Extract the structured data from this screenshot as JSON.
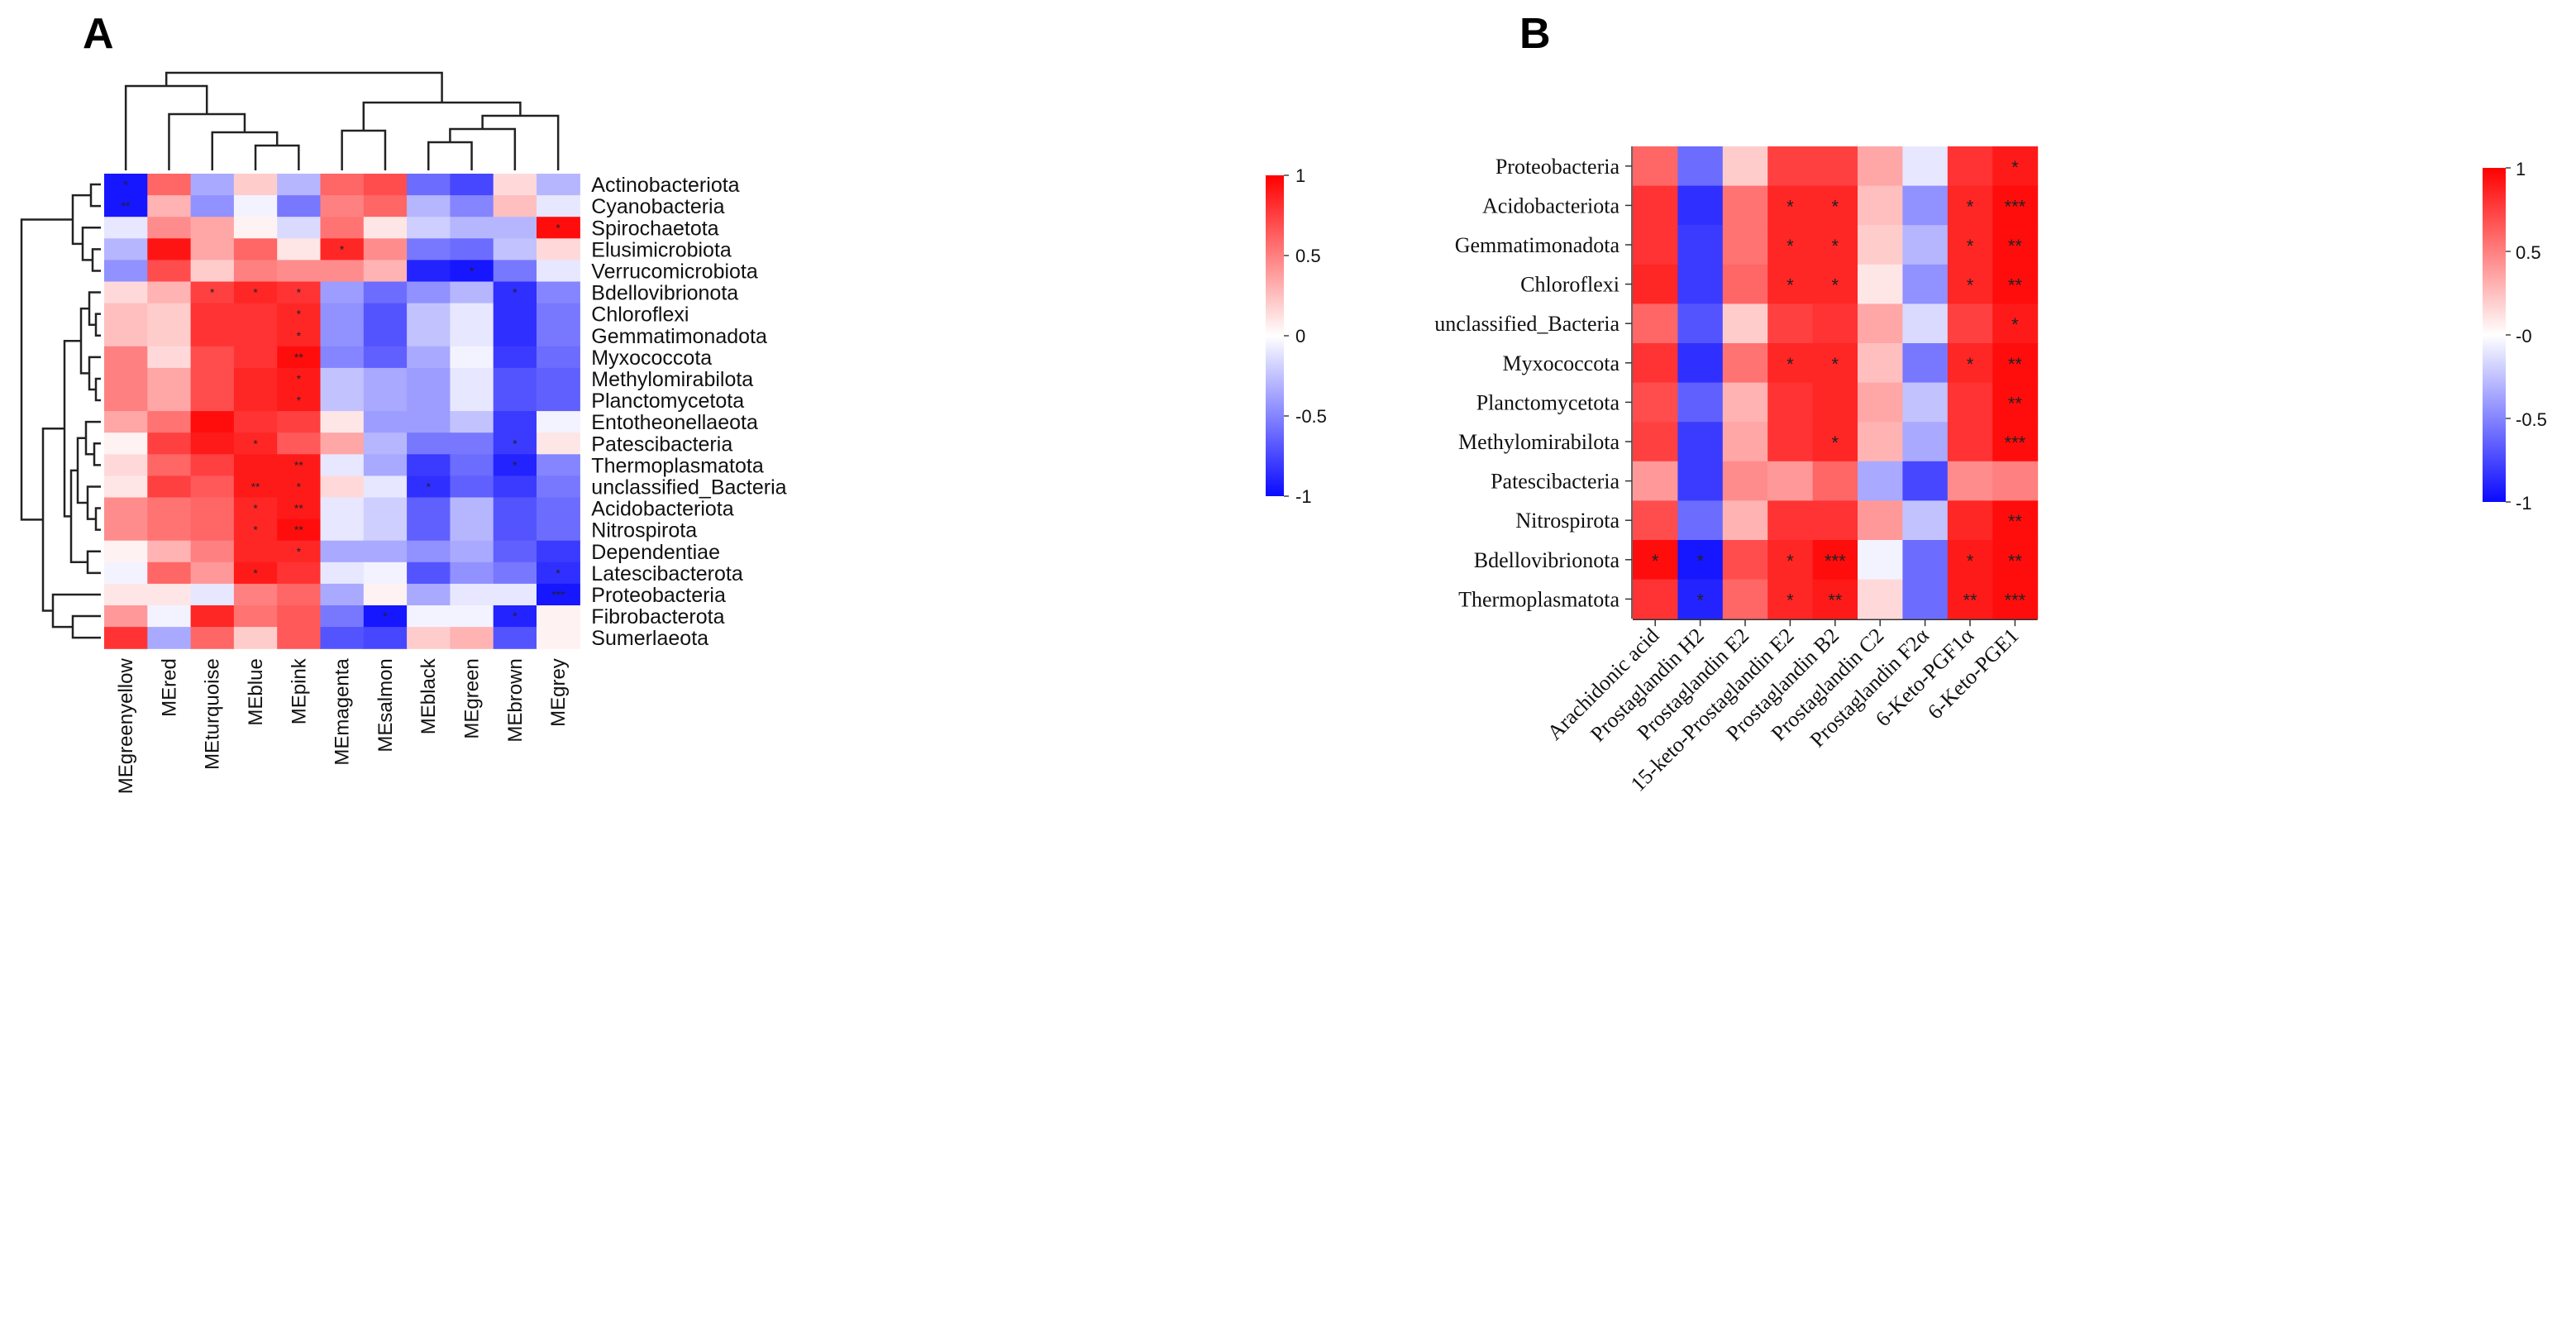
{
  "chart_data": [
    {
      "type": "heatmap",
      "panel_label": "A",
      "rows": [
        "Actinobacteriota",
        "Cyanobacteria",
        "Spirochaetota",
        "Elusimicrobiota",
        "Verrucomicrobiota",
        "Bdellovibrionota",
        "Chloroflexi",
        "Gemmatimonadota",
        "Myxococcota",
        "Methylomirabilota",
        "Planctomycetota",
        "Entotheonellaeota",
        "Patescibacteria",
        "Thermoplasmatota",
        "unclassified_Bacteria",
        "Acidobacteriota",
        "Nitrospirota",
        "Dependentiae",
        "Latescibacterota",
        "Proteobacteria",
        "Fibrobacterota",
        "Sumerlaeota"
      ],
      "columns": [
        "MEgreenyellow",
        "MEred",
        "MEturquoise",
        "MEblue",
        "MEpink",
        "MEmagenta",
        "MEsalmon",
        "MEblack",
        "MEgreen",
        "MEbrown",
        "MEgrey"
      ],
      "values": [
        [
          -0.95,
          0.6,
          -0.35,
          0.2,
          -0.3,
          0.6,
          0.7,
          -0.6,
          -0.75,
          0.15,
          -0.3
        ],
        [
          -0.95,
          0.3,
          -0.45,
          -0.05,
          -0.55,
          0.5,
          0.6,
          -0.3,
          -0.5,
          0.25,
          -0.1
        ],
        [
          -0.1,
          0.45,
          0.35,
          0.05,
          -0.15,
          0.55,
          0.1,
          -0.2,
          -0.3,
          -0.3,
          0.95
        ],
        [
          -0.3,
          0.92,
          0.35,
          0.6,
          0.1,
          0.85,
          0.45,
          -0.55,
          -0.6,
          -0.25,
          0.15
        ],
        [
          -0.45,
          0.7,
          0.2,
          0.5,
          0.45,
          0.45,
          0.3,
          -0.9,
          -0.95,
          -0.55,
          -0.1
        ],
        [
          0.15,
          0.3,
          0.75,
          0.85,
          0.8,
          -0.4,
          -0.6,
          -0.45,
          -0.3,
          -0.85,
          -0.5
        ],
        [
          0.25,
          0.2,
          0.8,
          0.8,
          0.85,
          -0.45,
          -0.7,
          -0.25,
          -0.1,
          -0.85,
          -0.55
        ],
        [
          0.25,
          0.2,
          0.8,
          0.8,
          0.85,
          -0.45,
          -0.7,
          -0.25,
          -0.1,
          -0.85,
          -0.55
        ],
        [
          0.5,
          0.15,
          0.7,
          0.8,
          0.95,
          -0.5,
          -0.65,
          -0.35,
          -0.05,
          -0.8,
          -0.6
        ],
        [
          0.5,
          0.35,
          0.7,
          0.85,
          0.9,
          -0.25,
          -0.35,
          -0.4,
          -0.1,
          -0.7,
          -0.65
        ],
        [
          0.5,
          0.35,
          0.7,
          0.85,
          0.9,
          -0.25,
          -0.35,
          -0.4,
          -0.1,
          -0.7,
          -0.65
        ],
        [
          0.35,
          0.55,
          0.95,
          0.8,
          0.75,
          0.1,
          -0.4,
          -0.4,
          -0.25,
          -0.8,
          -0.05
        ],
        [
          0.05,
          0.75,
          0.9,
          0.85,
          0.65,
          0.35,
          -0.3,
          -0.55,
          -0.55,
          -0.8,
          0.1
        ],
        [
          0.15,
          0.6,
          0.75,
          0.9,
          0.9,
          -0.1,
          -0.35,
          -0.8,
          -0.6,
          -0.9,
          -0.5
        ],
        [
          0.1,
          0.75,
          0.65,
          0.9,
          0.9,
          0.15,
          -0.1,
          -0.85,
          -0.65,
          -0.8,
          -0.55
        ],
        [
          0.45,
          0.55,
          0.6,
          0.85,
          0.9,
          -0.1,
          -0.2,
          -0.65,
          -0.3,
          -0.7,
          -0.6
        ],
        [
          0.45,
          0.55,
          0.6,
          0.85,
          0.95,
          -0.1,
          -0.2,
          -0.65,
          -0.3,
          -0.7,
          -0.6
        ],
        [
          0.05,
          0.3,
          0.5,
          0.85,
          0.85,
          -0.35,
          -0.35,
          -0.45,
          -0.35,
          -0.65,
          -0.8
        ],
        [
          -0.05,
          0.6,
          0.4,
          0.9,
          0.8,
          -0.1,
          -0.05,
          -0.7,
          -0.45,
          -0.55,
          -0.85
        ],
        [
          0.1,
          0.1,
          -0.1,
          0.5,
          0.6,
          -0.35,
          0.05,
          -0.35,
          -0.1,
          -0.1,
          -0.95
        ],
        [
          0.4,
          -0.05,
          0.85,
          0.55,
          0.65,
          -0.55,
          -0.95,
          -0.05,
          -0.05,
          -0.9,
          0.05
        ],
        [
          0.8,
          -0.35,
          0.6,
          0.2,
          0.65,
          -0.7,
          -0.75,
          0.2,
          0.3,
          -0.7,
          0.05
        ]
      ],
      "significance": [
        [
          "*",
          "",
          "",
          "",
          "",
          "",
          "",
          "",
          "",
          "",
          ""
        ],
        [
          "**",
          "",
          "",
          "",
          "",
          "",
          "",
          "",
          "",
          "",
          ""
        ],
        [
          "",
          "",
          "",
          "",
          "",
          "",
          "",
          "",
          "",
          "",
          "*"
        ],
        [
          "",
          "",
          "",
          "",
          "",
          "*",
          "",
          "",
          "",
          "",
          ""
        ],
        [
          "",
          "",
          "",
          "",
          "",
          "",
          "",
          "",
          "*",
          "",
          ""
        ],
        [
          "",
          "",
          "*",
          "*",
          "*",
          "",
          "",
          "",
          "",
          "*",
          ""
        ],
        [
          "",
          "",
          "",
          "",
          "*",
          "",
          "",
          "",
          "",
          "",
          ""
        ],
        [
          "",
          "",
          "",
          "",
          "*",
          "",
          "",
          "",
          "",
          "",
          ""
        ],
        [
          "",
          "",
          "",
          "",
          "**",
          "",
          "",
          "",
          "",
          "",
          ""
        ],
        [
          "",
          "",
          "",
          "",
          "*",
          "",
          "",
          "",
          "",
          "",
          ""
        ],
        [
          "",
          "",
          "",
          "",
          "*",
          "",
          "",
          "",
          "",
          "",
          ""
        ],
        [
          "",
          "",
          "",
          "",
          "",
          "",
          "",
          "",
          "",
          "",
          ""
        ],
        [
          "",
          "",
          "",
          "*",
          "",
          "",
          "",
          "",
          "",
          "*",
          ""
        ],
        [
          "",
          "",
          "",
          "",
          "**",
          "",
          "",
          "",
          "",
          "*",
          ""
        ],
        [
          "",
          "",
          "",
          "**",
          "*",
          "",
          "",
          "*",
          "",
          "",
          ""
        ],
        [
          "",
          "",
          "",
          "*",
          "**",
          "",
          "",
          "",
          "",
          "",
          ""
        ],
        [
          "",
          "",
          "",
          "*",
          "**",
          "",
          "",
          "",
          "",
          "",
          ""
        ],
        [
          "",
          "",
          "",
          "",
          "*",
          "",
          "",
          "",
          "",
          "",
          ""
        ],
        [
          "",
          "",
          "",
          "*",
          "",
          "",
          "",
          "",
          "",
          "",
          "*"
        ],
        [
          "",
          "",
          "",
          "",
          "",
          "",
          "",
          "",
          "",
          "",
          "***"
        ],
        [
          "",
          "",
          "",
          "",
          "",
          "",
          "*",
          "",
          "",
          "*",
          ""
        ],
        [
          "",
          "",
          "",
          "",
          "",
          "",
          "",
          "",
          "",
          "",
          ""
        ]
      ],
      "colorbar": {
        "ticks": [
          "1",
          "0.5",
          "0",
          "-0.5",
          "-1"
        ]
      },
      "colors": {
        "low": "#0a0aff",
        "mid": "#ffffff",
        "high": "#ff0000"
      }
    },
    {
      "type": "heatmap",
      "panel_label": "B",
      "rows": [
        "Proteobacteria",
        "Acidobacteriota",
        "Gemmatimonadota",
        "Chloroflexi",
        "unclassified_Bacteria",
        "Myxococcota",
        "Planctomycetota",
        "Methylomirabilota",
        "Patescibacteria",
        "Nitrospirota",
        "Bdellovibrionota",
        "Thermoplasmatota"
      ],
      "columns": [
        "Arachidonic acid",
        "Prostaglandin H2",
        "Prostaglandin E2",
        "15-keto-Prostaglandin E2",
        "Prostaglandin B2",
        "Prostaglandin C2",
        "Prostaglandin F2α",
        "6-Keto-PGF1α",
        "6-Keto-PGE1"
      ],
      "values": [
        [
          0.6,
          -0.6,
          0.2,
          0.75,
          0.75,
          0.35,
          -0.1,
          0.8,
          0.9
        ],
        [
          0.8,
          -0.85,
          0.55,
          0.85,
          0.85,
          0.25,
          -0.45,
          0.85,
          0.95
        ],
        [
          0.8,
          -0.8,
          0.55,
          0.85,
          0.85,
          0.2,
          -0.3,
          0.85,
          0.95
        ],
        [
          0.85,
          -0.8,
          0.6,
          0.85,
          0.85,
          0.1,
          -0.45,
          0.85,
          0.95
        ],
        [
          0.6,
          -0.7,
          0.2,
          0.75,
          0.8,
          0.35,
          -0.15,
          0.75,
          0.9
        ],
        [
          0.8,
          -0.85,
          0.55,
          0.85,
          0.85,
          0.25,
          -0.55,
          0.85,
          0.95
        ],
        [
          0.7,
          -0.65,
          0.3,
          0.8,
          0.85,
          0.35,
          -0.25,
          0.8,
          0.95
        ],
        [
          0.75,
          -0.8,
          0.35,
          0.8,
          0.85,
          0.3,
          -0.35,
          0.8,
          0.95
        ],
        [
          0.4,
          -0.8,
          0.45,
          0.4,
          0.6,
          -0.35,
          -0.75,
          0.45,
          0.5
        ],
        [
          0.7,
          -0.6,
          0.3,
          0.8,
          0.8,
          0.4,
          -0.25,
          0.85,
          0.95
        ],
        [
          0.95,
          -0.95,
          0.7,
          0.85,
          0.95,
          -0.05,
          -0.6,
          0.9,
          0.95
        ],
        [
          0.8,
          -0.9,
          0.6,
          0.85,
          0.9,
          0.15,
          -0.6,
          0.9,
          0.95
        ]
      ],
      "significance": [
        [
          "",
          "",
          "",
          "",
          "",
          "",
          "",
          "",
          "*"
        ],
        [
          "",
          "",
          "",
          "*",
          "*",
          "",
          "",
          "*",
          "***"
        ],
        [
          "",
          "",
          "",
          "*",
          "*",
          "",
          "",
          "*",
          "**"
        ],
        [
          "",
          "",
          "",
          "*",
          "*",
          "",
          "",
          "*",
          "**"
        ],
        [
          "",
          "",
          "",
          "",
          "",
          "",
          "",
          "",
          "*"
        ],
        [
          "",
          "",
          "",
          "*",
          "*",
          "",
          "",
          "*",
          "**"
        ],
        [
          "",
          "",
          "",
          "",
          "",
          "",
          "",
          "",
          "**"
        ],
        [
          "",
          "",
          "",
          "",
          "*",
          "",
          "",
          "",
          "***"
        ],
        [
          "",
          "",
          "",
          "",
          "",
          "",
          "",
          "",
          ""
        ],
        [
          "",
          "",
          "",
          "",
          "",
          "",
          "",
          "",
          "**"
        ],
        [
          "*",
          "*",
          "",
          "*",
          "***",
          "",
          "",
          "*",
          "**"
        ],
        [
          "",
          "*",
          "",
          "*",
          "**",
          "",
          "",
          "**",
          "***"
        ]
      ],
      "colorbar": {
        "ticks": [
          "1",
          "0.5",
          "-0",
          "-0.5",
          "-1"
        ]
      },
      "colors": {
        "low": "#0a0aff",
        "mid": "#ffffff",
        "high": "#ff0000"
      }
    }
  ]
}
